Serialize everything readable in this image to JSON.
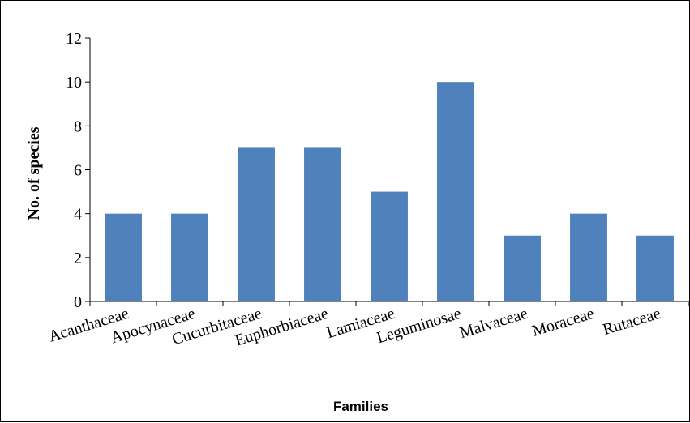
{
  "chart_data": {
    "type": "bar",
    "categories": [
      "Acanthaceae",
      "Apocynaceae",
      "Cucurbitaceae",
      "Euphorbiaceae",
      "Lamiaceae",
      "Leguminosae",
      "Malvaceae",
      "Moraceae",
      "Rutaceae"
    ],
    "values": [
      4,
      4,
      7,
      7,
      5,
      10,
      3,
      4,
      3
    ],
    "title": "",
    "xlabel": "Families",
    "ylabel": "No. of species",
    "ylim": [
      0,
      12
    ],
    "yticks": [
      "0",
      "2",
      "4",
      "6",
      "8",
      "10",
      "12"
    ],
    "grid": false,
    "legend": "none",
    "bar_color": "#4f81bd"
  }
}
